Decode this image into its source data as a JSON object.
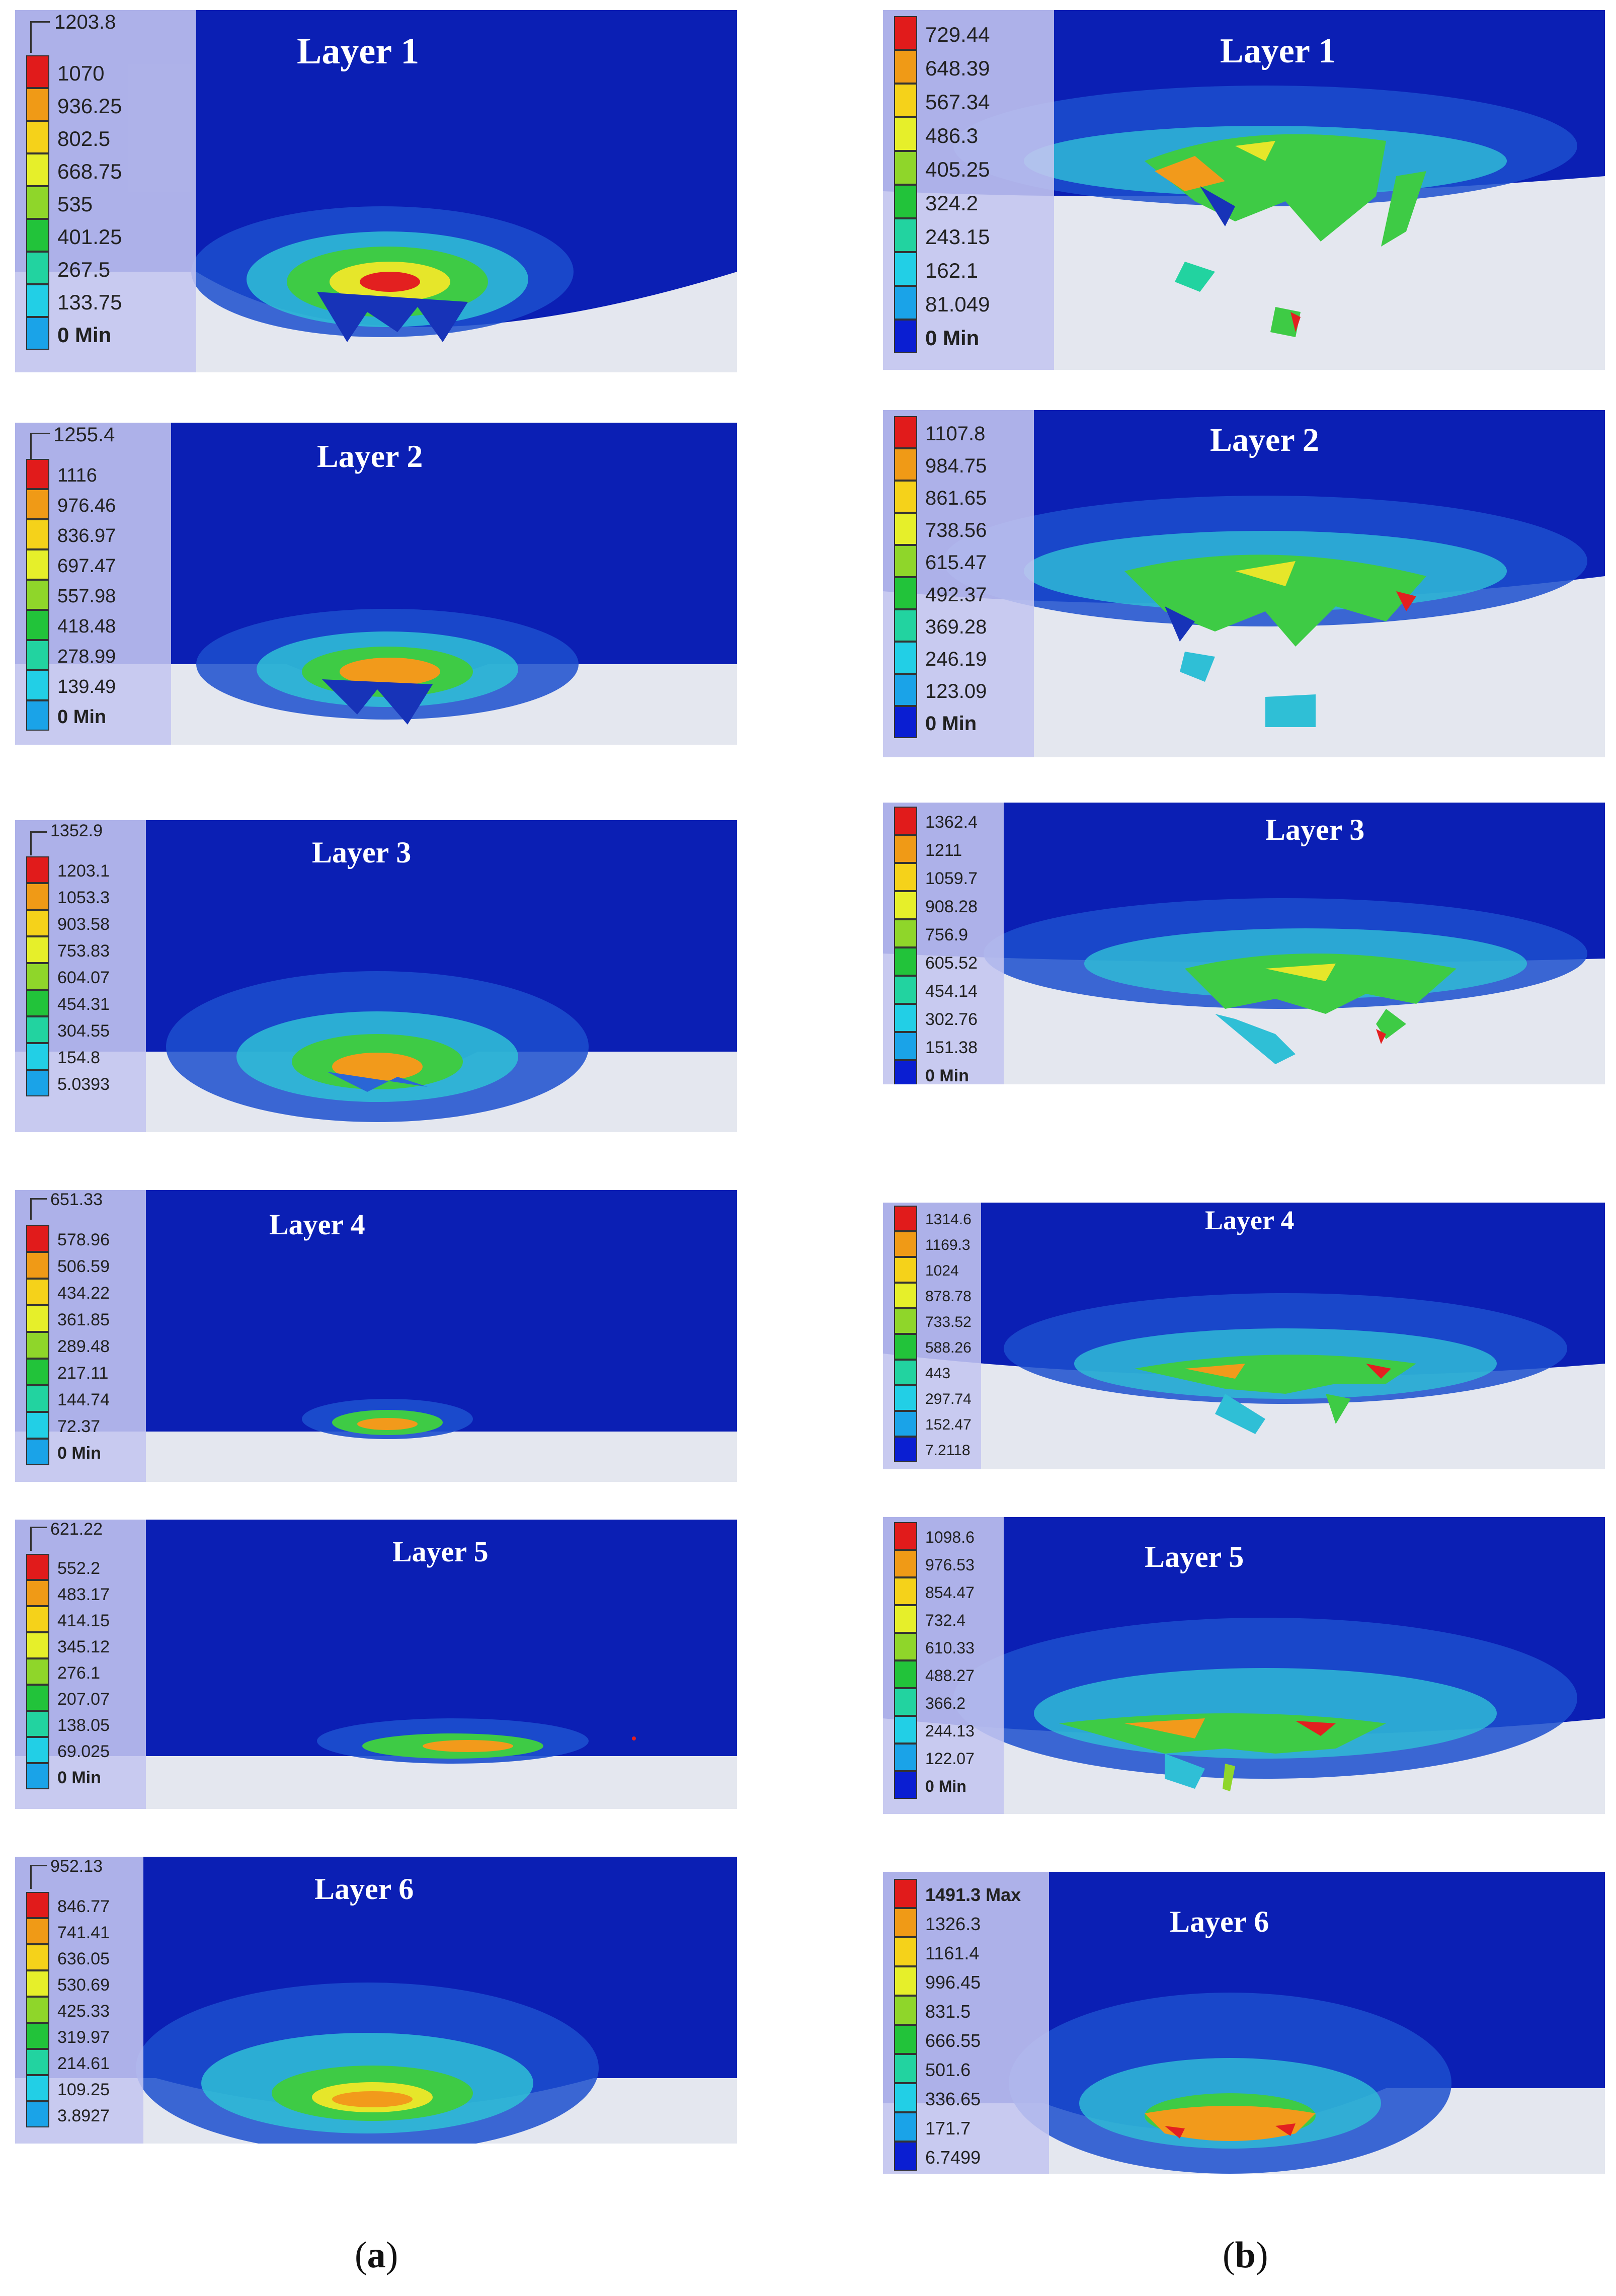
{
  "colors": {
    "fluid_top": "#0b1fb4",
    "band_blue": "#2a66d6",
    "band_cyan": "#34c6d8",
    "band_green": "#3ecb45",
    "band_yellow": "#e6e62a",
    "band_orange": "#f29a1b",
    "band_red": "#e32020",
    "solid_surface": "#e4e7ef",
    "legend_panel": "#c4c6f0"
  },
  "legend_colors": [
    "#e11b1b",
    "#f09a16",
    "#f5d21a",
    "#e6ef2a",
    "#8fd62a",
    "#22c33a",
    "#22d3a0",
    "#22cfe6",
    "#1aa3e8",
    "#0a1ed2"
  ],
  "columns": [
    {
      "caption_open": "(",
      "caption_letter": "a",
      "caption_close": ")",
      "panels": [
        {
          "title": "Layer 1",
          "max": "1203.8",
          "levels": [
            "1070",
            "936.25",
            "802.5",
            "668.75",
            "535",
            "401.25",
            "267.5",
            "133.75",
            "0 Min"
          ]
        },
        {
          "title": "Layer 2",
          "max": "1255.4",
          "levels": [
            "1116",
            "976.46",
            "836.97",
            "697.47",
            "557.98",
            "418.48",
            "278.99",
            "139.49",
            "0 Min"
          ]
        },
        {
          "title": "Layer 3",
          "max": "1352.9",
          "levels": [
            "1203.1",
            "1053.3",
            "903.58",
            "753.83",
            "604.07",
            "454.31",
            "304.55",
            "154.8",
            "5.0393"
          ]
        },
        {
          "title": "Layer 4",
          "max": "651.33",
          "levels": [
            "578.96",
            "506.59",
            "434.22",
            "361.85",
            "289.48",
            "217.11",
            "144.74",
            "72.37",
            "0 Min"
          ]
        },
        {
          "title": "Layer 5",
          "max": "621.22",
          "levels": [
            "552.2",
            "483.17",
            "414.15",
            "345.12",
            "276.1",
            "207.07",
            "138.05",
            "69.025",
            "0 Min"
          ]
        },
        {
          "title": "Layer 6",
          "max": "952.13",
          "levels": [
            "846.77",
            "741.41",
            "636.05",
            "530.69",
            "425.33",
            "319.97",
            "214.61",
            "109.25",
            "3.8927"
          ]
        }
      ]
    },
    {
      "caption_open": "(",
      "caption_letter": "b",
      "caption_close": ")",
      "panels": [
        {
          "title": "Layer 1",
          "max": "",
          "levels": [
            "729.44",
            "648.39",
            "567.34",
            "486.3",
            "405.25",
            "324.2",
            "243.15",
            "162.1",
            "81.049",
            "0 Min"
          ]
        },
        {
          "title": "Layer 2",
          "max": "",
          "levels": [
            "1107.8",
            "984.75",
            "861.65",
            "738.56",
            "615.47",
            "492.37",
            "369.28",
            "246.19",
            "123.09",
            "0 Min"
          ]
        },
        {
          "title": "Layer 3",
          "max": "",
          "levels": [
            "1362.4",
            "1211",
            "1059.7",
            "908.28",
            "756.9",
            "605.52",
            "454.14",
            "302.76",
            "151.38",
            "0 Min"
          ]
        },
        {
          "title": "Layer 4",
          "max": "",
          "levels": [
            "1314.6",
            "1169.3",
            "1024",
            "878.78",
            "733.52",
            "588.26",
            "443",
            "297.74",
            "152.47",
            "7.2118"
          ]
        },
        {
          "title": "Layer 5",
          "max": "",
          "levels": [
            "1098.6",
            "976.53",
            "854.47",
            "732.4",
            "610.33",
            "488.27",
            "366.2",
            "244.13",
            "122.07",
            "0 Min"
          ]
        },
        {
          "title": "Layer 6",
          "max": "",
          "levels": [
            "1491.3 Max",
            "1326.3",
            "1161.4",
            "996.45",
            "831.5",
            "666.55",
            "501.6",
            "336.65",
            "171.7",
            "6.7499"
          ]
        }
      ]
    }
  ]
}
